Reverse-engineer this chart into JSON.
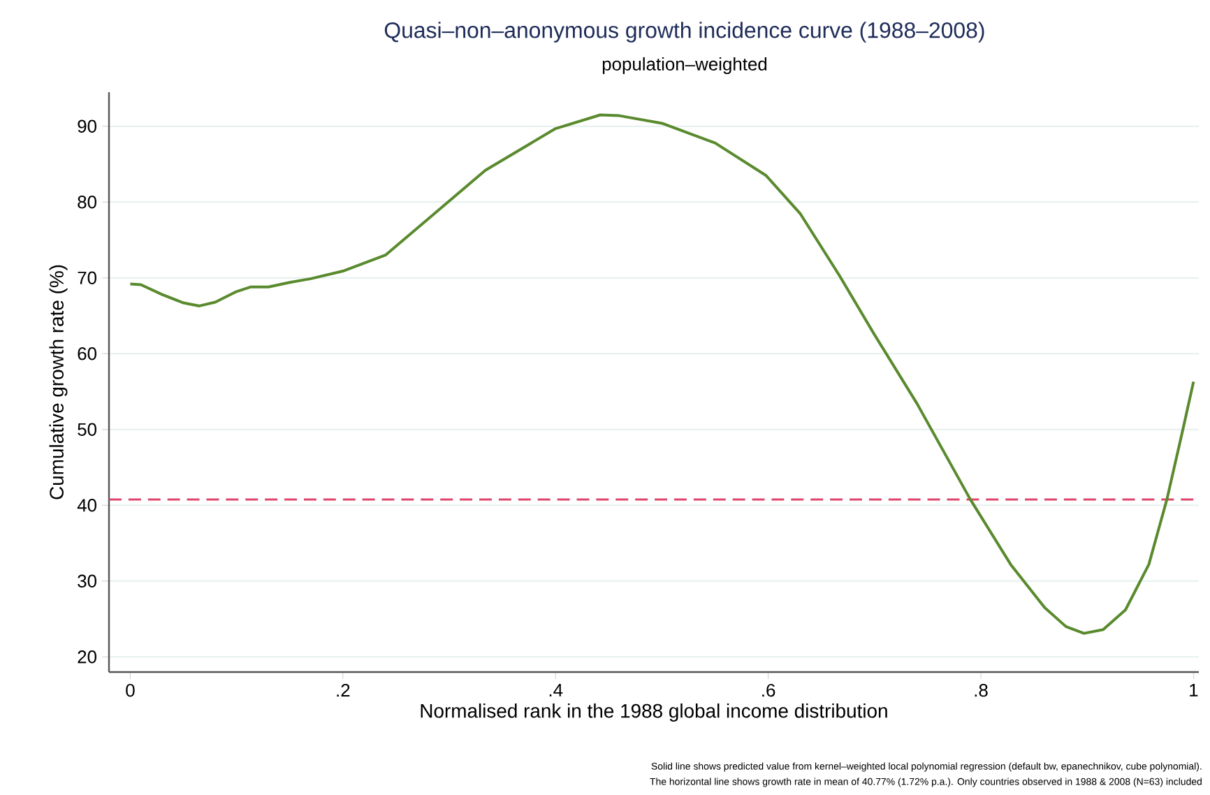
{
  "chart_data": {
    "type": "line",
    "title": "Quasi–non–anonymous growth incidence curve (1988–2008)",
    "subtitle": "population–weighted",
    "xlabel": "Normalised rank in the 1988 global income distribution",
    "ylabel": "Cumulative growth rate (%)",
    "annotations": [
      "Solid line shows predicted value from kernel–weighted local polynomial regression (default bw, epanechnikov, cube polynomial).",
      "The horizontal line shows growth rate in mean of 40.77% (1.72% p.a.). Only countries observed in 1988 & 2008 (N=63) included"
    ],
    "series": [
      {
        "color": "#5a8a2e",
        "x": [
          0,
          0.01,
          0.03,
          0.05,
          0.065,
          0.08,
          0.1,
          0.113,
          0.13,
          0.15,
          0.17,
          0.2,
          0.24,
          0.282,
          0.334,
          0.4,
          0.442,
          0.46,
          0.5,
          0.55,
          0.598,
          0.63,
          0.667,
          0.7,
          0.74,
          0.79,
          0.828,
          0.86,
          0.88,
          0.897,
          0.915,
          0.936,
          0.958,
          0.975,
          0.99,
          1.0
        ],
        "values": [
          69.2,
          69.1,
          67.8,
          66.7,
          66.3,
          66.8,
          68.2,
          68.8,
          68.8,
          69.4,
          69.9,
          70.9,
          73,
          78,
          84.2,
          89.7,
          91.5,
          91.4,
          90.4,
          87.8,
          83.5,
          78.5,
          70.3,
          62.5,
          53.4,
          40.8,
          32.2,
          26.5,
          24,
          23.1,
          23.6,
          26.2,
          32.2,
          40.8,
          50,
          56.3
        ]
      }
    ],
    "ref_lines": [
      {
        "axis": "y",
        "value": 40.77,
        "color": "#e0446a",
        "line_style": "dashed"
      }
    ],
    "xlim": [
      -0.02,
      1.005
    ],
    "ylim": [
      18,
      94.5
    ],
    "xticks": [
      0,
      {
        "value": 0.2,
        "label": ".2"
      },
      {
        "value": 0.4,
        "label": ".4"
      },
      {
        "value": 0.6,
        "label": ".6"
      },
      {
        "value": 0.8,
        "label": ".8"
      },
      1
    ],
    "yticks": [
      20,
      30,
      40,
      50,
      60,
      70,
      80,
      90
    ],
    "grid": "y",
    "line_style": "solid",
    "marker": "none"
  }
}
